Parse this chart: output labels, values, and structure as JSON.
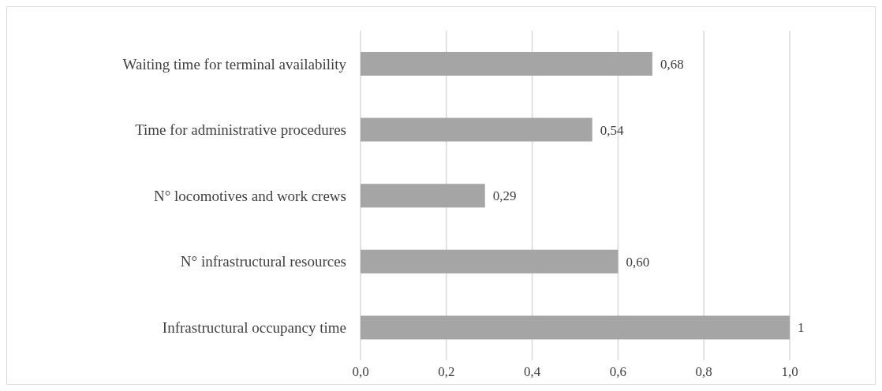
{
  "chart_data": {
    "type": "bar",
    "orientation": "horizontal",
    "categories": [
      "Waiting time for terminal availability",
      "Time for administrative procedures",
      "N° locomotives and work crews",
      "N° infrastructural resources",
      "Infrastructural occupancy time"
    ],
    "values": [
      0.68,
      0.54,
      0.29,
      0.6,
      1
    ],
    "value_labels": [
      "0,68",
      "0,54",
      "0,29",
      "0,60",
      "1"
    ],
    "color": "#a5a5a5",
    "xlim": [
      0,
      1
    ],
    "xticks": [
      {
        "value": 0,
        "label": "0,0"
      },
      {
        "value": 0.2,
        "label": "0,2"
      },
      {
        "value": 0.4,
        "label": "0,4"
      },
      {
        "value": 0.6,
        "label": "0,6"
      },
      {
        "value": 0.8,
        "label": "0,8"
      },
      {
        "value": 1,
        "label": "1,0"
      }
    ],
    "grid": "x",
    "legend": false
  }
}
